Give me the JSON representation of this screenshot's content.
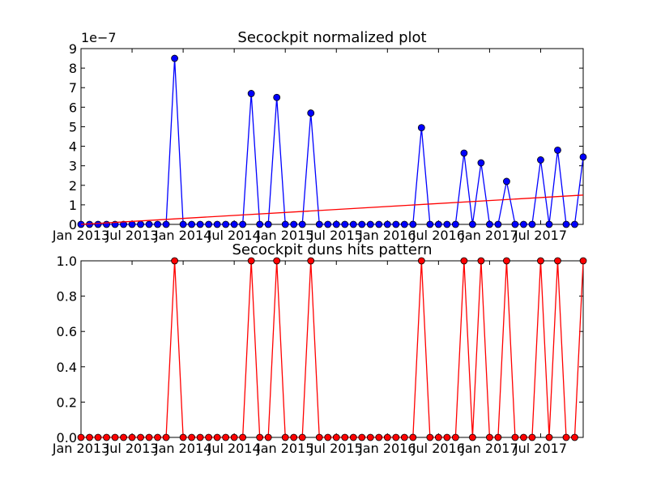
{
  "chart_data": [
    {
      "type": "line",
      "title": "Secockpit normalized plot",
      "xlabel": "",
      "ylabel": "",
      "offset_label": "1e−7",
      "ylim": [
        0,
        9
      ],
      "y_scale": "1e-7",
      "yticks": [
        "0",
        "1",
        "2",
        "3",
        "4",
        "5",
        "6",
        "7",
        "8",
        "9"
      ],
      "xlim": [
        "2013-01",
        "2017-12"
      ],
      "xticks": [
        {
          "date": "2013-01",
          "label": "Jan 2013"
        },
        {
          "date": "2013-07",
          "label": "Jul 2013"
        },
        {
          "date": "2014-01",
          "label": "Jan 2014"
        },
        {
          "date": "2014-07",
          "label": "Jul 2014"
        },
        {
          "date": "2015-01",
          "label": "Jan 2015"
        },
        {
          "date": "2015-07",
          "label": "Jul 2015"
        },
        {
          "date": "2016-01",
          "label": "Jan 2016"
        },
        {
          "date": "2016-07",
          "label": "Jul 2016"
        },
        {
          "date": "2017-01",
          "label": "Jan 2017"
        },
        {
          "date": "2017-07",
          "label": "Jul 2017"
        }
      ],
      "grid": false,
      "series": [
        {
          "color": "#0000ff",
          "marker": "circle",
          "x": [
            "2013-01",
            "2013-02",
            "2013-03",
            "2013-04",
            "2013-05",
            "2013-06",
            "2013-07",
            "2013-08",
            "2013-09",
            "2013-10",
            "2013-11",
            "2013-12",
            "2014-01",
            "2014-02",
            "2014-03",
            "2014-04",
            "2014-05",
            "2014-06",
            "2014-07",
            "2014-08",
            "2014-09",
            "2014-10",
            "2014-11",
            "2014-12",
            "2015-01",
            "2015-02",
            "2015-03",
            "2015-04",
            "2015-05",
            "2015-06",
            "2015-07",
            "2015-08",
            "2015-09",
            "2015-10",
            "2015-11",
            "2015-12",
            "2016-01",
            "2016-02",
            "2016-03",
            "2016-04",
            "2016-05",
            "2016-06",
            "2016-07",
            "2016-08",
            "2016-09",
            "2016-10",
            "2016-11",
            "2016-12",
            "2017-01",
            "2017-02",
            "2017-03",
            "2017-04",
            "2017-05",
            "2017-06",
            "2017-07",
            "2017-08",
            "2017-09",
            "2017-10",
            "2017-11",
            "2017-12"
          ],
          "values": [
            0,
            0,
            0,
            0,
            0,
            0,
            0,
            0,
            0,
            0,
            0,
            8.5,
            0,
            0,
            0,
            0,
            0,
            0,
            0,
            0,
            6.7,
            0,
            0,
            6.5,
            0,
            0,
            0,
            5.7,
            0,
            0,
            0,
            0,
            0,
            0,
            0,
            0,
            0,
            0,
            0,
            0,
            4.95,
            0,
            0,
            0,
            0,
            3.65,
            0,
            3.15,
            0,
            0,
            2.2,
            0,
            0,
            0,
            3.3,
            0,
            3.8,
            0,
            0,
            3.45
          ]
        },
        {
          "color": "#ff0000",
          "marker": "none",
          "x": [
            "2013-01",
            "2017-12"
          ],
          "values": [
            0,
            1.5
          ]
        }
      ]
    },
    {
      "type": "line",
      "title": "Secockpit duns hits pattern",
      "xlabel": "",
      "ylabel": "",
      "ylim": [
        0,
        1
      ],
      "yticks": [
        "0.0",
        "0.2",
        "0.4",
        "0.6",
        "0.8",
        "1.0"
      ],
      "xlim": [
        "2013-01",
        "2017-12"
      ],
      "xticks": [
        {
          "date": "2013-01",
          "label": "Jan 2013"
        },
        {
          "date": "2013-07",
          "label": "Jul 2013"
        },
        {
          "date": "2014-01",
          "label": "Jan 2014"
        },
        {
          "date": "2014-07",
          "label": "Jul 2014"
        },
        {
          "date": "2015-01",
          "label": "Jan 2015"
        },
        {
          "date": "2015-07",
          "label": "Jul 2015"
        },
        {
          "date": "2016-01",
          "label": "Jan 2016"
        },
        {
          "date": "2016-07",
          "label": "Jul 2016"
        },
        {
          "date": "2017-01",
          "label": "Jan 2017"
        },
        {
          "date": "2017-07",
          "label": "Jul 2017"
        }
      ],
      "grid": false,
      "series": [
        {
          "color": "#ff0000",
          "marker": "circle",
          "x": [
            "2013-01",
            "2013-02",
            "2013-03",
            "2013-04",
            "2013-05",
            "2013-06",
            "2013-07",
            "2013-08",
            "2013-09",
            "2013-10",
            "2013-11",
            "2013-12",
            "2014-01",
            "2014-02",
            "2014-03",
            "2014-04",
            "2014-05",
            "2014-06",
            "2014-07",
            "2014-08",
            "2014-09",
            "2014-10",
            "2014-11",
            "2014-12",
            "2015-01",
            "2015-02",
            "2015-03",
            "2015-04",
            "2015-05",
            "2015-06",
            "2015-07",
            "2015-08",
            "2015-09",
            "2015-10",
            "2015-11",
            "2015-12",
            "2016-01",
            "2016-02",
            "2016-03",
            "2016-04",
            "2016-05",
            "2016-06",
            "2016-07",
            "2016-08",
            "2016-09",
            "2016-10",
            "2016-11",
            "2016-12",
            "2017-01",
            "2017-02",
            "2017-03",
            "2017-04",
            "2017-05",
            "2017-06",
            "2017-07",
            "2017-08",
            "2017-09",
            "2017-10",
            "2017-11",
            "2017-12"
          ],
          "values": [
            0,
            0,
            0,
            0,
            0,
            0,
            0,
            0,
            0,
            0,
            0,
            1,
            0,
            0,
            0,
            0,
            0,
            0,
            0,
            0,
            1,
            0,
            0,
            1,
            0,
            0,
            0,
            1,
            0,
            0,
            0,
            0,
            0,
            0,
            0,
            0,
            0,
            0,
            0,
            0,
            1,
            0,
            0,
            0,
            0,
            1,
            0,
            1,
            0,
            0,
            1,
            0,
            0,
            0,
            1,
            0,
            1,
            0,
            0,
            1
          ]
        }
      ]
    }
  ]
}
